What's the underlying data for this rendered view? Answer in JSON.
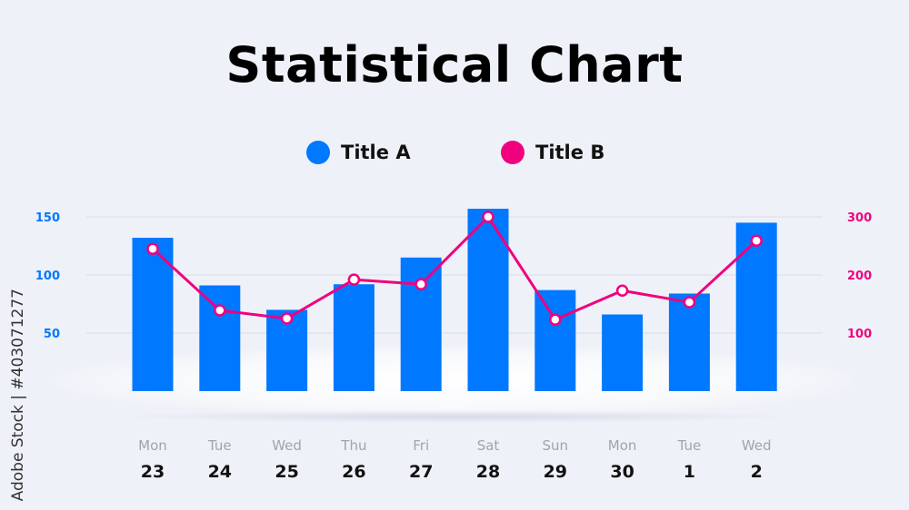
{
  "chart_data": {
    "type": "bar+line",
    "title": "Statistical Chart",
    "categories": [
      {
        "day": "Mon",
        "date": "23"
      },
      {
        "day": "Tue",
        "date": "24"
      },
      {
        "day": "Wed",
        "date": "25"
      },
      {
        "day": "Thu",
        "date": "26"
      },
      {
        "day": "Fri",
        "date": "27"
      },
      {
        "day": "Sat",
        "date": "28"
      },
      {
        "day": "Sun",
        "date": "29"
      },
      {
        "day": "Mon",
        "date": "30"
      },
      {
        "day": "Tue",
        "date": "1"
      },
      {
        "day": "Wed",
        "date": "2"
      }
    ],
    "series": [
      {
        "name": "Title A",
        "type": "bar",
        "axis": "left",
        "color": "#0078ff",
        "values": [
          132,
          91,
          70,
          92,
          115,
          157,
          87,
          66,
          84,
          145
        ]
      },
      {
        "name": "Title B",
        "type": "line",
        "axis": "right",
        "color": "#f0007f",
        "values": [
          245,
          139,
          125,
          192,
          184,
          300,
          123,
          173,
          153,
          259
        ]
      }
    ],
    "left_axis": {
      "ticks": [
        "50",
        "100",
        "150"
      ],
      "range": [
        0,
        150
      ],
      "color": "#0078ff"
    },
    "right_axis": {
      "ticks": [
        "100",
        "200",
        "300"
      ],
      "range": [
        0,
        300
      ],
      "color": "#f0007f"
    },
    "grid": true,
    "legend": "top-center"
  },
  "watermark": "Adobe Stock | #403071277"
}
